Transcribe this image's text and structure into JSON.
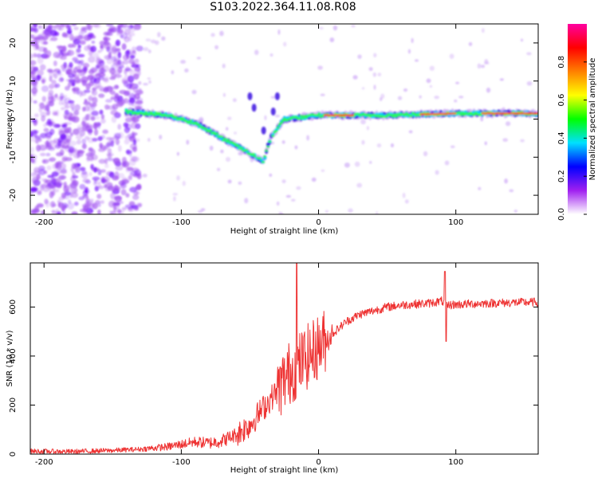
{
  "figure": {
    "title": "S103.2022.364.11.08.R08"
  },
  "chart_data": [
    {
      "type": "heatmap",
      "xlabel": "Height of straight line (km)",
      "ylabel": "Frequency (Hz)",
      "xlim": [
        -210,
        160
      ],
      "ylim": [
        -25,
        25
      ],
      "x_ticks": [
        -200,
        -100,
        0,
        100
      ],
      "y_ticks": [
        -20,
        -10,
        0,
        10,
        20
      ],
      "colorbar": {
        "label": "Normalized spectral amplitude",
        "range": [
          0,
          1
        ],
        "ticks": [
          0.0,
          0.2,
          0.4,
          0.6,
          0.8
        ],
        "colors": [
          "#ffffff",
          "#a020f0",
          "#0000ff",
          "#00e0ff",
          "#00ff00",
          "#ffff00",
          "#ff8000",
          "#ff0000",
          "#ff00a0"
        ]
      },
      "ridge": {
        "description_points": [
          {
            "x": -140,
            "y": 2
          },
          {
            "x": -110,
            "y": 1
          },
          {
            "x": -90,
            "y": -1
          },
          {
            "x": -75,
            "y": -4
          },
          {
            "x": -60,
            "y": -7
          },
          {
            "x": -50,
            "y": -9
          },
          {
            "x": -40,
            "y": -11
          },
          {
            "x": -35,
            "y": -5
          },
          {
            "x": -25,
            "y": 0
          },
          {
            "x": 0,
            "y": 1
          },
          {
            "x": 50,
            "y": 1
          },
          {
            "x": 100,
            "y": 1.5
          },
          {
            "x": 160,
            "y": 1.5
          }
        ]
      }
    },
    {
      "type": "line",
      "xlabel": "Height of straight line (km)",
      "ylabel": "SNR (10 * v/v)",
      "xlim": [
        -210,
        160
      ],
      "ylim": [
        0,
        780
      ],
      "x_ticks": [
        -200,
        -100,
        0,
        100
      ],
      "y_ticks": [
        0,
        200,
        400,
        600
      ],
      "series": [
        {
          "color": "#ee3333",
          "x": [
            -210,
            -180,
            -150,
            -130,
            -110,
            -100,
            -90,
            -80,
            -70,
            -60,
            -50,
            -40,
            -30,
            -25,
            -20,
            -15,
            -10,
            -5,
            0,
            10,
            20,
            30,
            40,
            50,
            60,
            70,
            80,
            85,
            90,
            93,
            95,
            100,
            120,
            140,
            160
          ],
          "y": [
            12,
            10,
            15,
            20,
            30,
            40,
            50,
            45,
            55,
            80,
            120,
            190,
            260,
            300,
            340,
            360,
            390,
            410,
            440,
            490,
            540,
            570,
            585,
            600,
            608,
            612,
            615,
            620,
            625,
            600,
            608,
            610,
            615,
            618,
            620
          ]
        }
      ],
      "annotations": {
        "spike": {
          "x": -16,
          "y": 780
        },
        "dip": {
          "x": 93,
          "y": 460
        }
      }
    }
  ]
}
